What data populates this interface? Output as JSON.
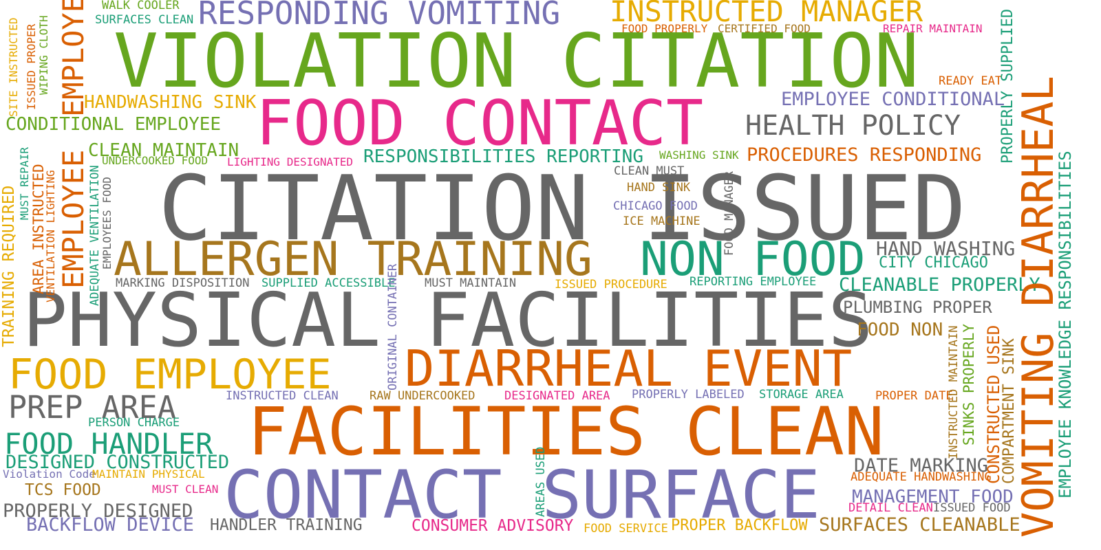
{
  "palette": {
    "green": "#66a61e",
    "gray": "#666666",
    "orange": "#d95f02",
    "pink": "#e7298a",
    "purple": "#7570b3",
    "teal": "#1b9e77",
    "gold": "#e6ab02",
    "brown": "#a6761d"
  },
  "words": {
    "w001": "CITATION ISSUED",
    "w002": "PHYSICAL FACILITIES",
    "w003": "VIOLATION CITATION",
    "w004": "FOOD CONTACT",
    "w005": "FACILITIES CLEAN",
    "w006": "CONTACT SURFACE",
    "w007": "DIARRHEAL EVENT",
    "w008": "ALLERGEN TRAINING",
    "w009": "NON FOOD",
    "w010": "FOOD EMPLOYEE",
    "w011": "PREP AREA",
    "w012": "FOOD HANDLER",
    "w013": "RESPONDING VOMITING",
    "w014": "INSTRUCTED MANAGER",
    "w015": "HEALTH POLICY",
    "w016": "VOMITING DIARRHEAL",
    "w017": "EMPLOYEE HEALTH",
    "w018": "EMPLOYEE KNOWLEDGE RESPONSIBILITIES",
    "w019": "HANDWASHING SINK",
    "w020": "CONDITIONAL EMPLOYEE",
    "w021": "CLEAN MAINTAIN",
    "w022": "RESPONSIBILITIES REPORTING",
    "w023": "PROCEDURES RESPONDING",
    "w024": "EMPLOYEE CONDITIONAL",
    "w025": "HAND WASHING",
    "w026": "CITY CHICAGO",
    "w027": "CLEANABLE PROPERLY",
    "w028": "PLUMBING PROPER",
    "w029": "FOOD NON",
    "w030": "DATE MARKING",
    "w031": "MANAGEMENT FOOD",
    "w032": "SURFACES CLEANABLE",
    "w033": "DESIGNED CONSTRUCTED",
    "w034": "PROPERLY DESIGNED",
    "w035": "BACKFLOW DEVICE",
    "w036": "TCS FOOD",
    "w037": "HANDLER TRAINING",
    "w038": "CONSUMER ADVISORY",
    "w039": "PROPER BACKFLOW",
    "w040": "FOOD SERVICE",
    "w041": "WALK COOLER",
    "w042": "SURFACES CLEAN",
    "w043": "FOOD PROPERLY",
    "w044": "CERTIFIED FOOD",
    "w045": "REPAIR MAINTAIN",
    "w046": "READY EAT",
    "w047": "UNDERCOOKED FOOD",
    "w048": "LIGHTING DESIGNATED",
    "w049": "WASHING SINK",
    "w050": "CLEAN MUST",
    "w051": "HAND SINK",
    "w052": "CHICAGO FOOD",
    "w053": "ICE MACHINE",
    "w054": "MARKING DISPOSITION",
    "w055": "SUPPLIED ACCESSIBLE",
    "w056": "MUST MAINTAIN",
    "w057": "ISSUED PROCEDURE",
    "w058": "REPORTING EMPLOYEE",
    "w059": "INSTRUCTED CLEAN",
    "w060": "RAW UNDERCOOKED",
    "w061": "DESIGNATED AREA",
    "w062": "PROPERLY LABELED",
    "w063": "STORAGE AREA",
    "w064": "PROPER DATE",
    "w065": "PERSON CHARGE",
    "w066": "Violation Code",
    "w067": "MAINTAIN PHYSICAL",
    "w068": "MUST CLEAN",
    "w069": "ADEQUATE HANDWASHING",
    "w070": "DETAIL CLEAN",
    "w071": "ISSUED FOOD",
    "w072": "SITE INSTRUCTED",
    "w073": "ISSUED PROPER",
    "w074": "WIPING CLOTH",
    "w075": "TRAINING REQUIRED",
    "w076": "MUST REPAIR",
    "w077": "AREA INSTRUCTED",
    "w078": "VENTILATION LIGHTING",
    "w079": "EMPLOYEE",
    "w080": "ADEQUATE VENTILATION",
    "w081": "EMPLOYEES FOOD",
    "w082": "ORIGINAL CONTAINER",
    "w083": "FOOD MANAGER",
    "w084": "PROPERLY SUPPLIED",
    "w085": "AREAS USED",
    "w086": "SINKS PROPERLY",
    "w087": "INSTRUCTED MAINTAIN",
    "w088": "CONSTRUCTED USED",
    "w089": "COMPARTMENT SINK"
  }
}
